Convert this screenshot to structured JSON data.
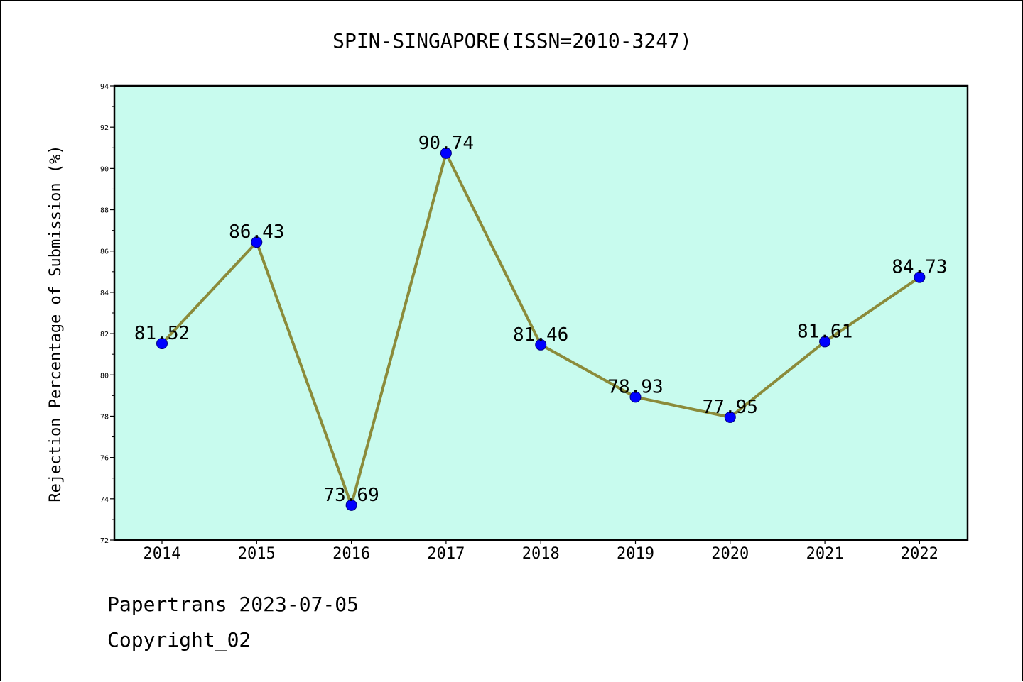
{
  "chart_data": {
    "type": "line",
    "title": "SPIN-SINGAPORE(ISSN=2010-3247)",
    "xlabel": "",
    "ylabel": "Rejection Percentage of Submission (%)",
    "categories": [
      "2014",
      "2015",
      "2016",
      "2017",
      "2018",
      "2019",
      "2020",
      "2021",
      "2022"
    ],
    "series": [
      {
        "values": [
          81.52,
          86.43,
          73.69,
          90.74,
          81.46,
          78.93,
          77.95,
          81.61,
          84.73
        ],
        "labels": [
          "81.52",
          "86.43",
          "73.69",
          "90.74",
          "81.46",
          "78.93",
          "77.95",
          "81.61",
          "84.73"
        ]
      }
    ],
    "ylim": [
      72,
      94
    ],
    "yticks": [
      "72",
      "74",
      "76",
      "78",
      "80",
      "82",
      "84",
      "86",
      "88",
      "90",
      "92",
      "94"
    ],
    "grid": false,
    "colors": {
      "plot_background": "#c8fbee",
      "line": "#8b8b3a",
      "marker": "#0000ff",
      "axis": "#000000"
    }
  },
  "footer": {
    "line1": "Papertrans 2023-07-05",
    "line2": "Copyright_02"
  }
}
